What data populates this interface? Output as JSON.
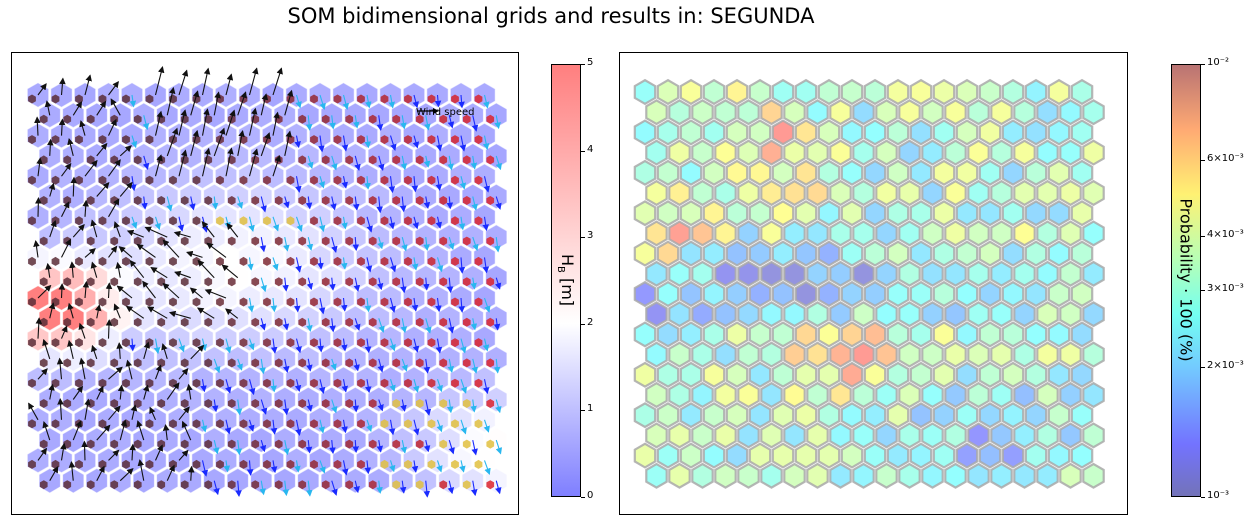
{
  "title": "SOM bidimensional grids and results in: SEGUNDA",
  "chart_data": [
    {
      "type": "heatmap",
      "subtype": "hexagonal SOM grid with wind vectors",
      "grid": {
        "columns": 20,
        "rows": 20
      },
      "legend": {
        "label": "Wind speed",
        "placement": "top-right"
      },
      "colorbar": {
        "label": "H_B [m]",
        "label_main": "H",
        "label_sub": "B",
        "label_unit": "[m]",
        "range": [
          0,
          5
        ],
        "ticks": [
          "0",
          "1",
          "2",
          "3",
          "4",
          "5"
        ],
        "colors": [
          "#0000ff",
          "#ffffff",
          "#ff0000"
        ]
      }
    },
    {
      "type": "heatmap",
      "subtype": "hexagonal SOM grid probability",
      "grid": {
        "columns": 20,
        "rows": 20
      },
      "colorbar": {
        "label": "Probability · 100 (%)",
        "scale": "log",
        "range": [
          0.001,
          0.01
        ],
        "ticks": [
          {
            "value": 0.001,
            "label": "10⁻³"
          },
          {
            "value": 0.002,
            "label": "2×10⁻³"
          },
          {
            "value": 0.003,
            "label": "3×10⁻³"
          },
          {
            "value": 0.004,
            "label": "4×10⁻³"
          },
          {
            "value": 0.006,
            "label": "6×10⁻³"
          },
          {
            "value": 0.01,
            "label": "10⁻²"
          }
        ],
        "colormap": "jet"
      }
    }
  ]
}
